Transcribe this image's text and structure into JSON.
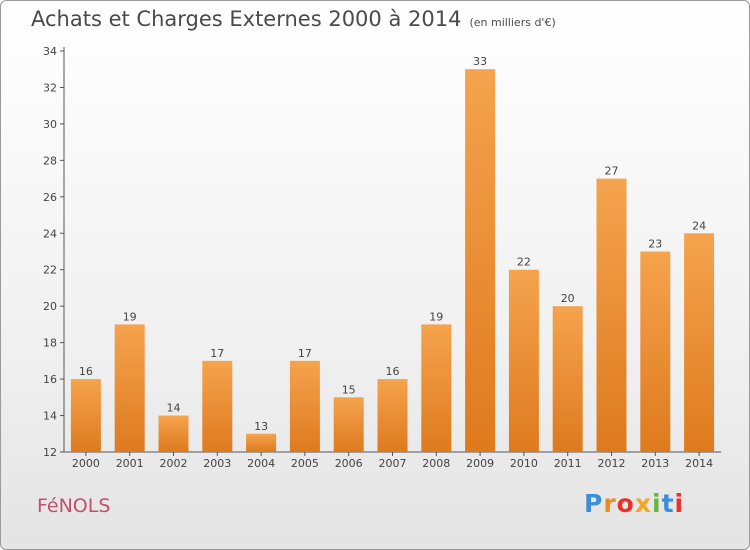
{
  "header": {
    "title": "Achats et Charges Externes 2000 à 2014",
    "subtitle": "(en milliers d'€)"
  },
  "footer": {
    "commune": "FéNOLS",
    "logo_letters": [
      "P",
      "r",
      "o",
      "x",
      "i",
      "t",
      "i"
    ],
    "logo_colors": [
      "#3a8fd8",
      "#f08a1c",
      "#e8332a",
      "#f5a623",
      "#6cb33f",
      "#3a8fd8",
      "#e8332a"
    ]
  },
  "chart_data": {
    "type": "bar",
    "title": "Achats et Charges Externes 2000 à 2014",
    "subtitle": "(en milliers d'€)",
    "categories": [
      "2000",
      "2001",
      "2002",
      "2003",
      "2004",
      "2005",
      "2006",
      "2007",
      "2008",
      "2009",
      "2010",
      "2011",
      "2012",
      "2013",
      "2014"
    ],
    "values": [
      16,
      19,
      14,
      17,
      13,
      17,
      15,
      16,
      19,
      33,
      22,
      20,
      27,
      23,
      24
    ],
    "ylim": [
      12,
      34
    ],
    "yticks": [
      12,
      14,
      16,
      18,
      20,
      22,
      24,
      26,
      28,
      30,
      32,
      34
    ],
    "grid": false,
    "bar_color_top": "#f5a34e",
    "bar_color_bottom": "#de7a1e",
    "xlabel": "",
    "ylabel": ""
  }
}
